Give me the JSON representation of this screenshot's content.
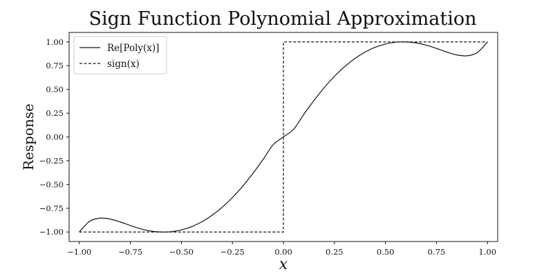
{
  "chart_data": {
    "type": "line",
    "title": "Sign Function Polynomial Approximation",
    "xlabel": "x",
    "ylabel": "Response",
    "xlim": [
      -1.05,
      1.05
    ],
    "ylim": [
      -1.1,
      1.1
    ],
    "xticks": [
      -1.0,
      -0.75,
      -0.5,
      -0.25,
      0.0,
      0.25,
      0.5,
      0.75,
      1.0
    ],
    "xtick_labels": [
      "−1.00",
      "−0.75",
      "−0.50",
      "−0.25",
      "0.00",
      "0.25",
      "0.50",
      "0.75",
      "1.00"
    ],
    "yticks": [
      -1.0,
      -0.75,
      -0.5,
      -0.25,
      0.0,
      0.25,
      0.5,
      0.75,
      1.0
    ],
    "ytick_labels": [
      "−1.00",
      "−0.75",
      "−0.50",
      "−0.25",
      "0.00",
      "0.25",
      "0.50",
      "0.75",
      "1.00"
    ],
    "grid": false,
    "legend_position": "top-left",
    "series": [
      {
        "name": "Re[Poly(x)]",
        "style": "solid",
        "color": "#111111",
        "x": [
          -1.0,
          -0.95,
          -0.9,
          -0.85,
          -0.8,
          -0.75,
          -0.7,
          -0.65,
          -0.6,
          -0.55,
          -0.5,
          -0.45,
          -0.4,
          -0.35,
          -0.3,
          -0.25,
          -0.2,
          -0.15,
          -0.1,
          -0.05,
          0.0,
          0.05,
          0.1,
          0.15,
          0.2,
          0.25,
          0.3,
          0.35,
          0.4,
          0.45,
          0.5,
          0.55,
          0.6,
          0.65,
          0.7,
          0.75,
          0.8,
          0.85,
          0.9,
          0.95,
          1.0
        ],
        "y": [
          -1.0,
          -0.888,
          -0.854,
          -0.863,
          -0.894,
          -0.932,
          -0.966,
          -0.99,
          -1.0,
          -0.997,
          -0.978,
          -0.944,
          -0.893,
          -0.825,
          -0.74,
          -0.638,
          -0.519,
          -0.385,
          -0.238,
          -0.081,
          0.0,
          0.081,
          0.238,
          0.385,
          0.519,
          0.638,
          0.74,
          0.825,
          0.893,
          0.944,
          0.978,
          0.997,
          1.0,
          0.99,
          0.966,
          0.932,
          0.894,
          0.863,
          0.854,
          0.888,
          1.0
        ]
      },
      {
        "name": "sign(x)",
        "style": "dashed",
        "color": "#111111",
        "x": [
          -1.0,
          0.0,
          0.0,
          1.0
        ],
        "y": [
          -1.0,
          -1.0,
          1.0,
          1.0
        ]
      }
    ]
  }
}
